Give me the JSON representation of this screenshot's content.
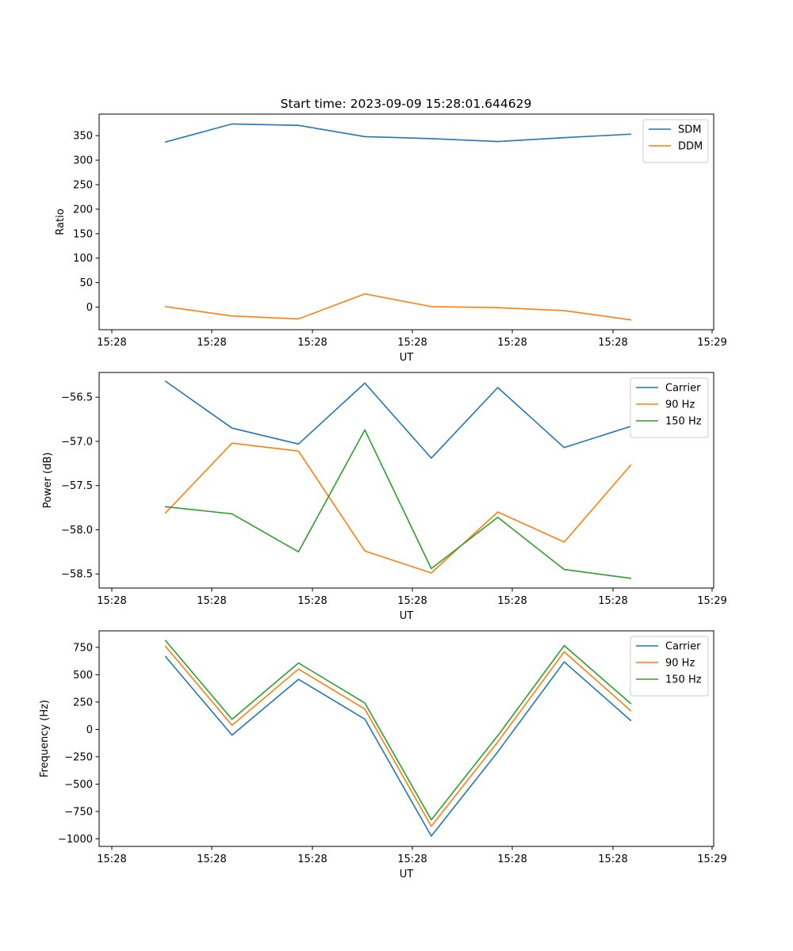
{
  "figure_title": "Start time: 2023-09-09 15:28:01.644629",
  "colors": {
    "series1": "#1f77b4",
    "series2": "#ff7f0e",
    "series3": "#2ca02c"
  },
  "chart_data": [
    {
      "type": "line",
      "title": "Start time: 2023-09-09 15:28:01.644629",
      "xlabel": "UT",
      "ylabel": "Ratio",
      "x_tick_labels": [
        "15:28",
        "15:28",
        "15:28",
        "15:28",
        "15:28",
        "15:28",
        "15:28"
      ],
      "x_last_tick_label": "15:29",
      "xlim": [
        0,
        9.25
      ],
      "x": [
        1,
        2,
        3,
        4,
        5,
        6,
        7,
        8
      ],
      "ylim": [
        -46,
        394
      ],
      "yticks": [
        0,
        50,
        100,
        150,
        200,
        250,
        300,
        350
      ],
      "ytick_labels": [
        "0",
        "50",
        "100",
        "150",
        "200",
        "250",
        "300",
        "350"
      ],
      "legend_position": "upper right",
      "series": [
        {
          "name": "SDM",
          "color": "#1f77b4",
          "values": [
            337,
            374,
            371,
            348,
            344,
            338,
            346,
            353
          ]
        },
        {
          "name": "DDM",
          "color": "#ff7f0e",
          "values": [
            1,
            -18,
            -24,
            27,
            1,
            -1,
            -7,
            -26
          ]
        }
      ]
    },
    {
      "type": "line",
      "xlabel": "UT",
      "ylabel": "Power (dB)",
      "x_tick_labels": [
        "15:28",
        "15:28",
        "15:28",
        "15:28",
        "15:28",
        "15:28",
        "15:28"
      ],
      "x_last_tick_label": "15:29",
      "xlim": [
        0,
        9.25
      ],
      "x": [
        1,
        2,
        3,
        4,
        5,
        6,
        7,
        8
      ],
      "ylim": [
        -58.66,
        -56.22
      ],
      "yticks": [
        -58.5,
        -58.0,
        -57.5,
        -57.0,
        -56.5
      ],
      "ytick_labels": [
        "−58.5",
        "−58.0",
        "−57.5",
        "−57.0",
        "−56.5"
      ],
      "legend_position": "upper right",
      "series": [
        {
          "name": "Carrier",
          "color": "#1f77b4",
          "values": [
            -56.32,
            -56.85,
            -57.03,
            -56.34,
            -57.19,
            -56.39,
            -57.07,
            -56.83
          ]
        },
        {
          "name": "90 Hz",
          "color": "#ff7f0e",
          "values": [
            -57.81,
            -57.02,
            -57.11,
            -58.24,
            -58.49,
            -57.8,
            -58.14,
            -57.27
          ]
        },
        {
          "name": "150 Hz",
          "color": "#2ca02c",
          "values": [
            -57.74,
            -57.82,
            -58.25,
            -56.87,
            -58.44,
            -57.86,
            -58.45,
            -58.55
          ]
        }
      ]
    },
    {
      "type": "line",
      "xlabel": "UT",
      "ylabel": "Frequency (Hz)",
      "x_tick_labels": [
        "15:28",
        "15:28",
        "15:28",
        "15:28",
        "15:28",
        "15:28",
        "15:28"
      ],
      "x_last_tick_label": "15:29",
      "xlim": [
        0,
        9.25
      ],
      "x": [
        1,
        2,
        3,
        4,
        5,
        6,
        7,
        8
      ],
      "ylim": [
        -1069,
        901
      ],
      "yticks": [
        -1000,
        -750,
        -500,
        -250,
        0,
        250,
        500,
        750
      ],
      "ytick_labels": [
        "−1000",
        "−750",
        "−500",
        "−250",
        "0",
        "250",
        "500",
        "750"
      ],
      "legend_position": "upper right",
      "series": [
        {
          "name": "Carrier",
          "color": "#1f77b4",
          "values": [
            665,
            -52,
            458,
            94,
            -975,
            -205,
            617,
            82
          ]
        },
        {
          "name": "90 Hz",
          "color": "#ff7f0e",
          "values": [
            759,
            38,
            551,
            186,
            -885,
            -115,
            709,
            172
          ]
        },
        {
          "name": "150 Hz",
          "color": "#2ca02c",
          "values": [
            811,
            93,
            607,
            241,
            -826,
            -57,
            766,
            237
          ]
        }
      ]
    }
  ]
}
